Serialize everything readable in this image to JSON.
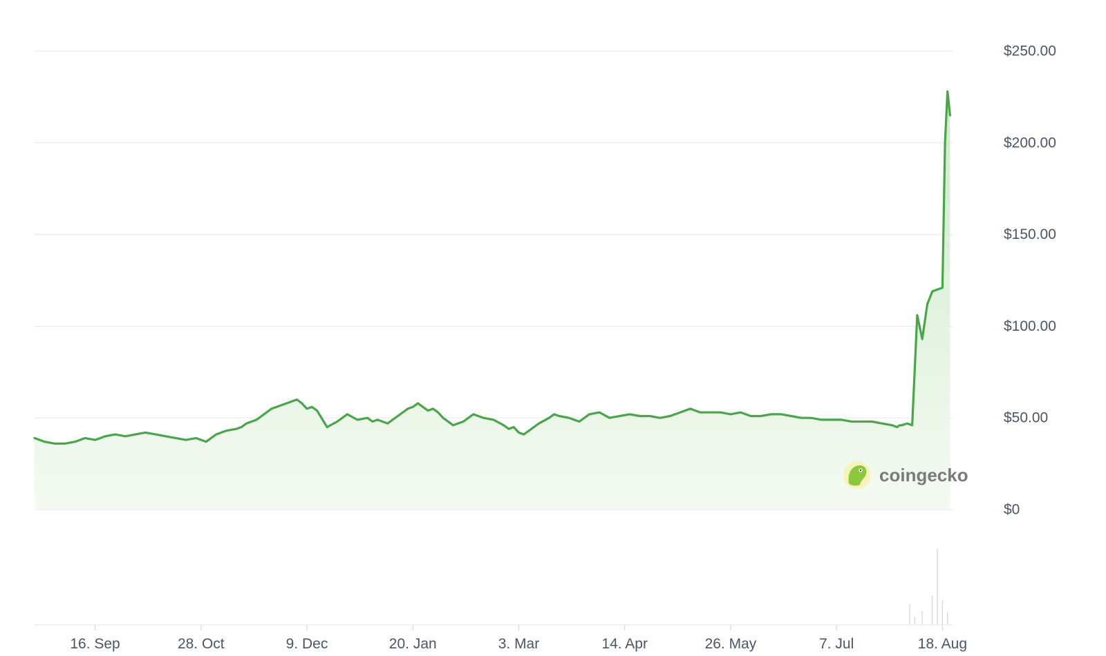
{
  "chart_data": {
    "type": "area",
    "title": "",
    "xlabel": "",
    "ylabel": "",
    "ylim": [
      0,
      250
    ],
    "y_ticks": [
      "$250.00",
      "$200.00",
      "$150.00",
      "$100.00",
      "$50.00",
      "$0"
    ],
    "y_tick_values": [
      250,
      200,
      150,
      100,
      50,
      0
    ],
    "x_ticks": [
      "16. Sep",
      "28. Oct",
      "9. Dec",
      "20. Jan",
      "3. Mar",
      "14. Apr",
      "26. May",
      "7. Jul",
      "18. Aug"
    ],
    "x_tick_days": [
      18,
      60,
      102,
      144,
      186,
      228,
      270,
      312,
      354
    ],
    "x_range_days": [
      -6,
      358
    ],
    "grid": true,
    "colors": {
      "line": "#4aa54a",
      "fill": "#dff0dc",
      "grid": "#e6e6e6",
      "text": "#4b5563"
    },
    "series": [
      {
        "values_x_days": [
          -6,
          -2,
          2,
          6,
          10,
          14,
          18,
          22,
          26,
          30,
          34,
          38,
          42,
          46,
          50,
          54,
          58,
          62,
          66,
          70,
          74,
          76,
          78,
          82,
          86,
          88,
          90,
          94,
          98,
          100,
          102,
          104,
          106,
          110,
          114,
          118,
          122,
          126,
          128,
          130,
          134,
          138,
          142,
          144,
          146,
          148,
          150,
          152,
          154,
          156,
          160,
          164,
          168,
          172,
          176,
          180,
          182,
          184,
          186,
          188,
          190,
          194,
          198,
          200,
          202,
          206,
          210,
          214,
          218,
          222,
          226,
          230,
          234,
          238,
          242,
          246,
          250,
          254,
          256,
          258,
          262,
          266,
          270,
          274,
          278,
          282,
          286,
          290,
          294,
          298,
          302,
          306,
          310,
          314,
          318,
          322,
          326,
          330,
          334,
          336,
          337,
          338,
          340,
          342,
          344,
          346,
          348,
          350,
          352,
          354,
          355,
          356,
          357
        ],
        "values": [
          39,
          37,
          36,
          36,
          37,
          39,
          38,
          40,
          41,
          40,
          41,
          42,
          41,
          40,
          39,
          38,
          39,
          37,
          41,
          43,
          44,
          45,
          47,
          49,
          53,
          55,
          56,
          58,
          60,
          58,
          55,
          56,
          54,
          45,
          48,
          52,
          49,
          50,
          48,
          49,
          47,
          51,
          55,
          56,
          58,
          56,
          54,
          55,
          53,
          50,
          46,
          48,
          52,
          50,
          49,
          46,
          44,
          45,
          42,
          41,
          43,
          47,
          50,
          52,
          51,
          50,
          48,
          52,
          53,
          50,
          51,
          52,
          51,
          51,
          50,
          51,
          53,
          55,
          54,
          53,
          53,
          53,
          52,
          53,
          51,
          51,
          52,
          52,
          51,
          50,
          50,
          49,
          49,
          49,
          48,
          48,
          48,
          47,
          46,
          45,
          46,
          46,
          47,
          46,
          106,
          93,
          112,
          119,
          120,
          121,
          200,
          228,
          215
        ]
      }
    ]
  },
  "watermark": {
    "brand": "coingecko",
    "icon": "gecko-logo-icon"
  }
}
